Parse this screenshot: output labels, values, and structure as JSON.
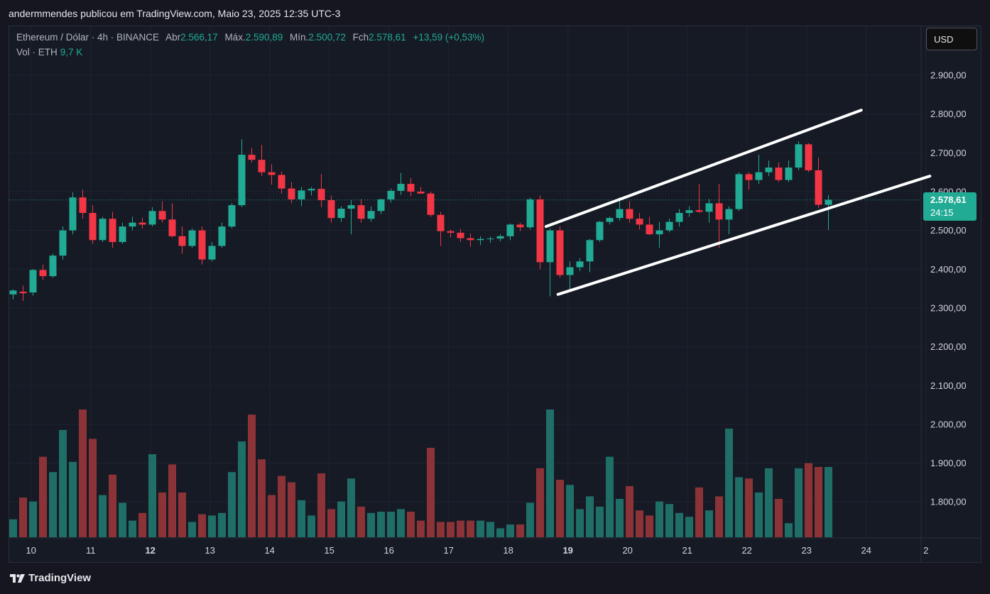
{
  "header": {
    "publisher_text": "andermmendes publicou em TradingView.com, Maio 23, 2025 12:35 UTC-3"
  },
  "legend": {
    "symbol": "Ethereum / Dólar · 4h · BINANCE",
    "open_label": "Abr",
    "open_value": "2.566,17",
    "high_label": "Máx.",
    "high_value": "2.590,89",
    "low_label": "Mín.",
    "low_value": "2.500,72",
    "close_label": "Fch",
    "close_value": "2.578,61",
    "change": "+13,59 (+0,53%)",
    "volume_label": "Vol · ETH",
    "volume_value": "9,7 K"
  },
  "toolbar": {
    "currency_button": "USD"
  },
  "last_price": {
    "price": "2.578,61",
    "countdown": "24:15"
  },
  "footer": {
    "brand": "TradingView"
  },
  "colors": {
    "up": "#22ab94",
    "down": "#f23645",
    "up_volume": "#1f6e67",
    "down_volume": "#8c3338",
    "background": "#161a25",
    "trendline": "#ffffff"
  },
  "chart_data": {
    "type": "candlestick",
    "title": "Ethereum / Dólar · 4h · BINANCE",
    "y_ticks": [
      "2.900,00",
      "2.800,00",
      "2.700,00",
      "2.600,00",
      "2.500,00",
      "2.400,00",
      "2.300,00",
      "2.200,00",
      "2.100,00",
      "2.000,00",
      "1.900,00",
      "1.800,00"
    ],
    "y_tick_values": [
      2900,
      2800,
      2700,
      2600,
      2500,
      2400,
      2300,
      2200,
      2100,
      2000,
      1900,
      1800
    ],
    "ylim": [
      1720,
      2980
    ],
    "x_ticks": [
      {
        "label": "10",
        "day": 10,
        "bold": false
      },
      {
        "label": "11",
        "day": 11,
        "bold": false
      },
      {
        "label": "12",
        "day": 12,
        "bold": true
      },
      {
        "label": "13",
        "day": 13,
        "bold": false
      },
      {
        "label": "14",
        "day": 14,
        "bold": false
      },
      {
        "label": "15",
        "day": 15,
        "bold": false
      },
      {
        "label": "16",
        "day": 16,
        "bold": false
      },
      {
        "label": "17",
        "day": 17,
        "bold": false
      },
      {
        "label": "18",
        "day": 18,
        "bold": false
      },
      {
        "label": "19",
        "day": 19,
        "bold": true
      },
      {
        "label": "20",
        "day": 20,
        "bold": false
      },
      {
        "label": "21",
        "day": 21,
        "bold": false
      },
      {
        "label": "22",
        "day": 22,
        "bold": false
      },
      {
        "label": "23",
        "day": 23,
        "bold": false
      },
      {
        "label": "24",
        "day": 24,
        "bold": false
      },
      {
        "label": "2",
        "day": 25,
        "bold": false
      }
    ],
    "candles": [
      {
        "o": 2335,
        "h": 2348,
        "l": 2322,
        "c": 2345
      },
      {
        "o": 2342,
        "h": 2358,
        "l": 2318,
        "c": 2338
      },
      {
        "o": 2340,
        "h": 2400,
        "l": 2332,
        "c": 2398
      },
      {
        "o": 2398,
        "h": 2412,
        "l": 2372,
        "c": 2382
      },
      {
        "o": 2382,
        "h": 2440,
        "l": 2378,
        "c": 2435
      },
      {
        "o": 2435,
        "h": 2510,
        "l": 2425,
        "c": 2500
      },
      {
        "o": 2500,
        "h": 2598,
        "l": 2490,
        "c": 2585
      },
      {
        "o": 2585,
        "h": 2605,
        "l": 2530,
        "c": 2545
      },
      {
        "o": 2545,
        "h": 2565,
        "l": 2465,
        "c": 2475
      },
      {
        "o": 2475,
        "h": 2535,
        "l": 2470,
        "c": 2530
      },
      {
        "o": 2530,
        "h": 2548,
        "l": 2455,
        "c": 2470
      },
      {
        "o": 2470,
        "h": 2520,
        "l": 2465,
        "c": 2510
      },
      {
        "o": 2510,
        "h": 2535,
        "l": 2500,
        "c": 2520
      },
      {
        "o": 2520,
        "h": 2532,
        "l": 2505,
        "c": 2515
      },
      {
        "o": 2515,
        "h": 2560,
        "l": 2510,
        "c": 2550
      },
      {
        "o": 2550,
        "h": 2575,
        "l": 2520,
        "c": 2528
      },
      {
        "o": 2528,
        "h": 2570,
        "l": 2482,
        "c": 2485
      },
      {
        "o": 2485,
        "h": 2510,
        "l": 2440,
        "c": 2460
      },
      {
        "o": 2460,
        "h": 2505,
        "l": 2455,
        "c": 2500
      },
      {
        "o": 2500,
        "h": 2510,
        "l": 2412,
        "c": 2425
      },
      {
        "o": 2425,
        "h": 2470,
        "l": 2420,
        "c": 2460
      },
      {
        "o": 2460,
        "h": 2520,
        "l": 2455,
        "c": 2510
      },
      {
        "o": 2510,
        "h": 2570,
        "l": 2505,
        "c": 2565
      },
      {
        "o": 2565,
        "h": 2735,
        "l": 2560,
        "c": 2695
      },
      {
        "o": 2695,
        "h": 2712,
        "l": 2675,
        "c": 2682
      },
      {
        "o": 2682,
        "h": 2720,
        "l": 2640,
        "c": 2650
      },
      {
        "o": 2650,
        "h": 2670,
        "l": 2618,
        "c": 2643
      },
      {
        "o": 2643,
        "h": 2652,
        "l": 2595,
        "c": 2608
      },
      {
        "o": 2608,
        "h": 2625,
        "l": 2570,
        "c": 2580
      },
      {
        "o": 2580,
        "h": 2612,
        "l": 2562,
        "c": 2603
      },
      {
        "o": 2603,
        "h": 2612,
        "l": 2590,
        "c": 2607
      },
      {
        "o": 2607,
        "h": 2645,
        "l": 2560,
        "c": 2578
      },
      {
        "o": 2578,
        "h": 2590,
        "l": 2520,
        "c": 2532
      },
      {
        "o": 2532,
        "h": 2562,
        "l": 2522,
        "c": 2556
      },
      {
        "o": 2556,
        "h": 2578,
        "l": 2490,
        "c": 2565
      },
      {
        "o": 2565,
        "h": 2580,
        "l": 2520,
        "c": 2530
      },
      {
        "o": 2530,
        "h": 2562,
        "l": 2522,
        "c": 2550
      },
      {
        "o": 2550,
        "h": 2582,
        "l": 2542,
        "c": 2580
      },
      {
        "o": 2580,
        "h": 2608,
        "l": 2572,
        "c": 2602
      },
      {
        "o": 2602,
        "h": 2648,
        "l": 2592,
        "c": 2620
      },
      {
        "o": 2620,
        "h": 2635,
        "l": 2588,
        "c": 2600
      },
      {
        "o": 2600,
        "h": 2612,
        "l": 2595,
        "c": 2595
      },
      {
        "o": 2595,
        "h": 2600,
        "l": 2535,
        "c": 2540
      },
      {
        "o": 2540,
        "h": 2548,
        "l": 2460,
        "c": 2498
      },
      {
        "o": 2498,
        "h": 2502,
        "l": 2482,
        "c": 2494
      },
      {
        "o": 2494,
        "h": 2504,
        "l": 2470,
        "c": 2480
      },
      {
        "o": 2480,
        "h": 2492,
        "l": 2458,
        "c": 2475
      },
      {
        "o": 2475,
        "h": 2485,
        "l": 2462,
        "c": 2478
      },
      {
        "o": 2478,
        "h": 2484,
        "l": 2468,
        "c": 2479
      },
      {
        "o": 2479,
        "h": 2490,
        "l": 2472,
        "c": 2485
      },
      {
        "o": 2485,
        "h": 2518,
        "l": 2475,
        "c": 2515
      },
      {
        "o": 2515,
        "h": 2520,
        "l": 2498,
        "c": 2508
      },
      {
        "o": 2508,
        "h": 2585,
        "l": 2502,
        "c": 2580
      },
      {
        "o": 2580,
        "h": 2590,
        "l": 2400,
        "c": 2418
      },
      {
        "o": 2418,
        "h": 2505,
        "l": 2330,
        "c": 2500
      },
      {
        "o": 2500,
        "h": 2510,
        "l": 2378,
        "c": 2385
      },
      {
        "o": 2385,
        "h": 2420,
        "l": 2345,
        "c": 2405
      },
      {
        "o": 2405,
        "h": 2428,
        "l": 2395,
        "c": 2420
      },
      {
        "o": 2420,
        "h": 2478,
        "l": 2392,
        "c": 2475
      },
      {
        "o": 2475,
        "h": 2525,
        "l": 2470,
        "c": 2522
      },
      {
        "o": 2522,
        "h": 2535,
        "l": 2515,
        "c": 2532
      },
      {
        "o": 2532,
        "h": 2585,
        "l": 2525,
        "c": 2555
      },
      {
        "o": 2555,
        "h": 2575,
        "l": 2520,
        "c": 2530
      },
      {
        "o": 2530,
        "h": 2545,
        "l": 2502,
        "c": 2515
      },
      {
        "o": 2515,
        "h": 2535,
        "l": 2488,
        "c": 2490
      },
      {
        "o": 2490,
        "h": 2522,
        "l": 2455,
        "c": 2500
      },
      {
        "o": 2500,
        "h": 2530,
        "l": 2495,
        "c": 2522
      },
      {
        "o": 2522,
        "h": 2555,
        "l": 2510,
        "c": 2545
      },
      {
        "o": 2545,
        "h": 2562,
        "l": 2535,
        "c": 2552
      },
      {
        "o": 2552,
        "h": 2620,
        "l": 2545,
        "c": 2548
      },
      {
        "o": 2548,
        "h": 2580,
        "l": 2520,
        "c": 2570
      },
      {
        "o": 2570,
        "h": 2620,
        "l": 2455,
        "c": 2528
      },
      {
        "o": 2528,
        "h": 2562,
        "l": 2490,
        "c": 2555
      },
      {
        "o": 2555,
        "h": 2650,
        "l": 2550,
        "c": 2645
      },
      {
        "o": 2645,
        "h": 2650,
        "l": 2605,
        "c": 2630
      },
      {
        "o": 2630,
        "h": 2695,
        "l": 2620,
        "c": 2650
      },
      {
        "o": 2650,
        "h": 2680,
        "l": 2640,
        "c": 2662
      },
      {
        "o": 2662,
        "h": 2675,
        "l": 2625,
        "c": 2630
      },
      {
        "o": 2630,
        "h": 2680,
        "l": 2625,
        "c": 2662
      },
      {
        "o": 2662,
        "h": 2730,
        "l": 2655,
        "c": 2722
      },
      {
        "o": 2722,
        "h": 2725,
        "l": 2650,
        "c": 2655
      },
      {
        "o": 2655,
        "h": 2688,
        "l": 2558,
        "c": 2566
      },
      {
        "o": 2566,
        "h": 2591,
        "l": 2501,
        "c": 2579
      }
    ],
    "volume_heights": [
      0.14,
      0.31,
      0.28,
      0.63,
      0.51,
      0.84,
      0.59,
      1.0,
      0.77,
      0.33,
      0.49,
      0.27,
      0.13,
      0.19,
      0.65,
      0.35,
      0.57,
      0.35,
      0.12,
      0.18,
      0.17,
      0.19,
      0.51,
      0.75,
      0.96,
      0.61,
      0.33,
      0.48,
      0.43,
      0.29,
      0.17,
      0.5,
      0.22,
      0.28,
      0.46,
      0.24,
      0.19,
      0.2,
      0.2,
      0.22,
      0.2,
      0.13,
      0.7,
      0.12,
      0.12,
      0.13,
      0.13,
      0.13,
      0.12,
      0.07,
      0.1,
      0.1,
      0.27,
      0.54,
      1.0,
      0.45,
      0.41,
      0.22,
      0.32,
      0.24,
      0.63,
      0.3,
      0.4,
      0.21,
      0.17,
      0.28,
      0.26,
      0.19,
      0.16,
      0.39,
      0.21,
      0.32,
      0.85,
      0.47,
      0.46,
      0.35,
      0.54,
      0.3,
      0.11,
      0.54,
      0.58,
      0.55,
      0.55
    ],
    "trendlines": [
      {
        "x0": 53.6,
        "y0": 2510,
        "x1": 85.3,
        "y1": 2810
      },
      {
        "x0": 54.8,
        "y0": 2335,
        "x1": 92.2,
        "y1": 2640
      }
    ],
    "last_price": 2578.61,
    "first_day_index_10": 1.8,
    "bars_per_day": 6
  }
}
